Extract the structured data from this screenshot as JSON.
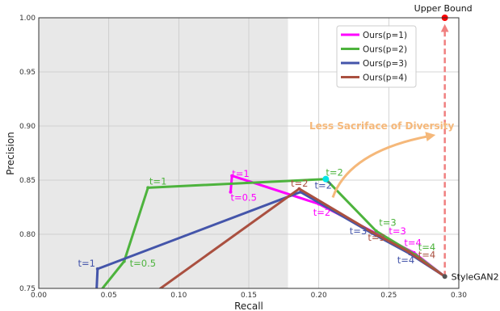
{
  "chart_data": {
    "type": "line",
    "xlabel": "Recall",
    "ylabel": "Precision",
    "xlim": [
      0.0,
      0.3
    ],
    "ylim": [
      0.75,
      1.0
    ],
    "xticks": [
      0.0,
      0.05,
      0.1,
      0.15,
      0.2,
      0.25,
      0.3
    ],
    "xtick_labels": [
      "0.00",
      "0.05",
      "0.10",
      "0.15",
      "0.20",
      "0.25",
      "0.30"
    ],
    "yticks": [
      0.75,
      0.8,
      0.85,
      0.9,
      0.95,
      1.0
    ],
    "ytick_labels": [
      "0.75",
      "0.80",
      "0.85",
      "0.90",
      "0.95",
      "1.00"
    ],
    "grid": true,
    "legend_position": "top-right",
    "shaded_region": {
      "x": [
        0.0,
        0.178
      ],
      "color": "#e8e8e8"
    },
    "series": [
      {
        "name": "Ours(p=1)",
        "color": "#ff00ff",
        "points": [
          [
            0.137,
            0.839
          ],
          [
            0.138,
            0.854
          ],
          [
            0.2,
            0.828
          ],
          [
            0.242,
            0.8
          ],
          [
            0.268,
            0.783
          ],
          [
            0.29,
            0.761
          ]
        ]
      },
      {
        "name": "Ours(p=2)",
        "color": "#4db33d",
        "points": [
          [
            0.03,
            0.725
          ],
          [
            0.061,
            0.775
          ],
          [
            0.078,
            0.843
          ],
          [
            0.205,
            0.851
          ],
          [
            0.241,
            0.803
          ],
          [
            0.269,
            0.781
          ],
          [
            0.29,
            0.761
          ]
        ]
      },
      {
        "name": "Ours(p=3)",
        "color": "#4455aa",
        "points": [
          [
            0.041,
            0.741
          ],
          [
            0.042,
            0.768
          ],
          [
            0.187,
            0.839
          ],
          [
            0.238,
            0.801
          ],
          [
            0.265,
            0.782
          ],
          [
            0.29,
            0.761
          ]
        ]
      },
      {
        "name": "Ours(p=4)",
        "color": "#aa5040",
        "points": [
          [
            0.06,
            0.725
          ],
          [
            0.186,
            0.842
          ],
          [
            0.238,
            0.802
          ],
          [
            0.264,
            0.784
          ],
          [
            0.29,
            0.761
          ]
        ]
      }
    ],
    "reference_points": [
      {
        "label": "StyleGAN2",
        "x": 0.29,
        "y": 0.761,
        "color": "#555555"
      },
      {
        "label": "Upper Bound",
        "x": 0.29,
        "y": 1.0,
        "color": "#ff0000"
      }
    ],
    "upper_bound_arrow": {
      "from": [
        0.29,
        0.761
      ],
      "to": [
        0.29,
        0.995
      ],
      "color": "#f08080"
    },
    "diversity_arrow": {
      "text": "Less Sacriface of Diversity",
      "color": "#f5b87a",
      "text_anchor": [
        0.245,
        0.9
      ],
      "path": [
        [
          0.21,
          0.834
        ],
        [
          0.222,
          0.877
        ],
        [
          0.28,
          0.891
        ]
      ]
    },
    "highlight_point": {
      "x": 0.205,
      "y": 0.851,
      "color": "#00e5e5"
    },
    "annotations": [
      {
        "text": "t=1",
        "x": 0.138,
        "y": 0.853,
        "color": "#ff00ff"
      },
      {
        "text": "t=0.5",
        "x": 0.137,
        "y": 0.831,
        "color": "#ff00ff"
      },
      {
        "text": "t=2",
        "x": 0.196,
        "y": 0.817,
        "color": "#ff00ff"
      },
      {
        "text": "t=3",
        "x": 0.25,
        "y": 0.8,
        "color": "#ff00ff"
      },
      {
        "text": "t=4",
        "x": 0.261,
        "y": 0.789,
        "color": "#ff00ff"
      },
      {
        "text": "t=1",
        "x": 0.079,
        "y": 0.846,
        "color": "#4db33d"
      },
      {
        "text": "t=0.5",
        "x": 0.065,
        "y": 0.77,
        "color": "#4db33d"
      },
      {
        "text": "t=2",
        "x": 0.205,
        "y": 0.854,
        "color": "#4db33d"
      },
      {
        "text": "t=3",
        "x": 0.243,
        "y": 0.808,
        "color": "#4db33d"
      },
      {
        "text": "t=4",
        "x": 0.271,
        "y": 0.785,
        "color": "#4db33d"
      },
      {
        "text": "t=1",
        "x": 0.028,
        "y": 0.77,
        "color": "#4455aa"
      },
      {
        "text": "t=2",
        "x": 0.197,
        "y": 0.842,
        "color": "#4455aa"
      },
      {
        "text": "t=3",
        "x": 0.222,
        "y": 0.8,
        "color": "#4455aa"
      },
      {
        "text": "t=4",
        "x": 0.256,
        "y": 0.773,
        "color": "#4455aa"
      },
      {
        "text": "t=2",
        "x": 0.18,
        "y": 0.844,
        "color": "#aa5040"
      },
      {
        "text": "t=3",
        "x": 0.235,
        "y": 0.794,
        "color": "#aa5040"
      },
      {
        "text": "t=4",
        "x": 0.271,
        "y": 0.778,
        "color": "#aa5040"
      }
    ]
  }
}
